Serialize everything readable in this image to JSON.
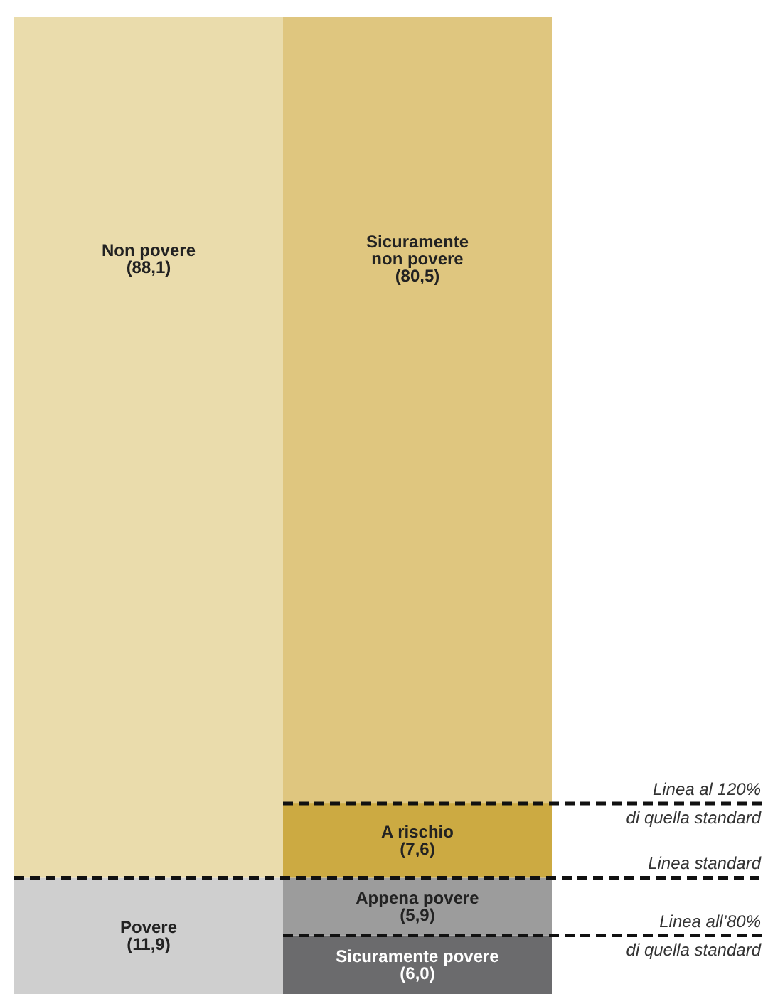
{
  "chart_data": {
    "type": "bar",
    "stacked": true,
    "categories": [
      null,
      null
    ],
    "ylim": [
      0,
      100
    ],
    "tick_labels": false,
    "series": [
      {
        "name": "Povere",
        "color": "#cfcfcf",
        "values": [
          11.9,
          null
        ],
        "value_labels": [
          "(11,9)",
          null
        ]
      },
      {
        "name": "Non povere",
        "color": "#eadcac",
        "values": [
          88.1,
          null
        ],
        "value_labels": [
          "(88,1)",
          null
        ]
      },
      {
        "name": "Sicuramente povere",
        "color": "#6b6b6d",
        "values": [
          null,
          6.0
        ],
        "value_labels": [
          null,
          "(6,0)"
        ]
      },
      {
        "name": "Appena povere",
        "color": "#9c9c9c",
        "values": [
          null,
          5.9
        ],
        "value_labels": [
          null,
          "(5,9)"
        ]
      },
      {
        "name": "A rischio",
        "color": "#ccaa42",
        "values": [
          null,
          7.6
        ],
        "value_labels": [
          null,
          "(7,6)"
        ]
      },
      {
        "name": "Sicuramente\nnon povere",
        "color": "#dfc67f",
        "values": [
          null,
          80.5
        ],
        "value_labels": [
          null,
          "(80,5)"
        ]
      }
    ],
    "ref_lines": [
      {
        "axis": "y",
        "value": 19.5,
        "label": "Linea al 120%\ndi quella standard",
        "line_style": "dashed"
      },
      {
        "axis": "y",
        "value": 11.9,
        "label": "Linea standard",
        "line_style": "dashed"
      },
      {
        "axis": "y",
        "value": 6.0,
        "label": "Linea all’80%\ndi quella standard",
        "line_style": "dashed"
      }
    ]
  }
}
